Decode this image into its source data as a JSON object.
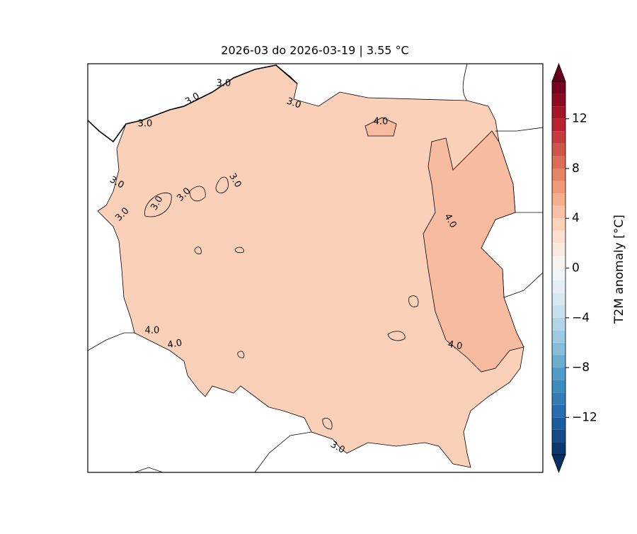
{
  "title": "2026-03 do 2026-03-19 | 3.55 °C",
  "colorbar": {
    "label": "T2M anomaly [°C]",
    "lim": [
      -15,
      15
    ],
    "level_step": 1,
    "colors": [
      "#053061",
      "#2166ac",
      "#4393c3",
      "#92c5de",
      "#d1e5f0",
      "#f7f7f7",
      "#fddbc7",
      "#f4a582",
      "#d6604d",
      "#b2182b",
      "#67001f"
    ],
    "ticks": [
      12,
      8,
      4,
      0,
      {
        "value": -4,
        "label": "−4"
      },
      {
        "value": -8,
        "label": "−8"
      },
      {
        "value": -12,
        "label": "−12"
      }
    ]
  },
  "contour_labels": [
    "3.0",
    "3.0",
    "3.0",
    "3.0",
    "3.0",
    "3.0",
    "3.0",
    "3.0",
    "3.0",
    "3.0",
    "4.0",
    "4.0",
    "4.0",
    "4.0",
    "4.0"
  ]
}
